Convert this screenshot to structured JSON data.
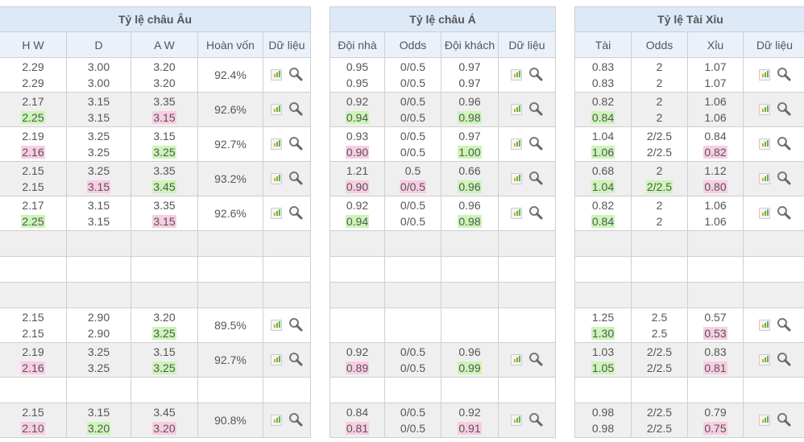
{
  "tables": [
    {
      "title": "Tỷ lệ châu Âu",
      "columns": [
        "H W",
        "D",
        "A W",
        "Hoàn vốn",
        "Dữ liệu"
      ],
      "rows": [
        {
          "cells": [
            [
              [
                "2.29",
                ""
              ],
              [
                "2.29",
                ""
              ]
            ],
            [
              [
                "3.00",
                ""
              ],
              [
                "3.00",
                ""
              ]
            ],
            [
              [
                "3.20",
                ""
              ],
              [
                "3.20",
                ""
              ]
            ]
          ],
          "payout": "92.4%"
        },
        {
          "cells": [
            [
              [
                "2.17",
                ""
              ],
              [
                "2.25",
                "up"
              ]
            ],
            [
              [
                "3.15",
                ""
              ],
              [
                "3.15",
                ""
              ]
            ],
            [
              [
                "3.35",
                ""
              ],
              [
                "3.15",
                "down"
              ]
            ]
          ],
          "payout": "92.6%"
        },
        {
          "cells": [
            [
              [
                "2.19",
                ""
              ],
              [
                "2.16",
                "down"
              ]
            ],
            [
              [
                "3.25",
                ""
              ],
              [
                "3.25",
                ""
              ]
            ],
            [
              [
                "3.15",
                ""
              ],
              [
                "3.25",
                "up"
              ]
            ]
          ],
          "payout": "92.7%"
        },
        {
          "cells": [
            [
              [
                "2.15",
                ""
              ],
              [
                "2.15",
                ""
              ]
            ],
            [
              [
                "3.25",
                ""
              ],
              [
                "3.15",
                "down"
              ]
            ],
            [
              [
                "3.35",
                ""
              ],
              [
                "3.45",
                "up"
              ]
            ]
          ],
          "payout": "93.2%"
        },
        {
          "cells": [
            [
              [
                "2.17",
                ""
              ],
              [
                "2.25",
                "up"
              ]
            ],
            [
              [
                "3.15",
                ""
              ],
              [
                "3.15",
                ""
              ]
            ],
            [
              [
                "3.35",
                ""
              ],
              [
                "3.15",
                "down"
              ]
            ]
          ],
          "payout": "92.6%"
        },
        null,
        null,
        null,
        {
          "cells": [
            [
              [
                "2.15",
                ""
              ],
              [
                "2.15",
                ""
              ]
            ],
            [
              [
                "2.90",
                ""
              ],
              [
                "2.90",
                ""
              ]
            ],
            [
              [
                "3.20",
                ""
              ],
              [
                "3.25",
                "up"
              ]
            ]
          ],
          "payout": "89.5%"
        },
        {
          "cells": [
            [
              [
                "2.19",
                ""
              ],
              [
                "2.16",
                "down"
              ]
            ],
            [
              [
                "3.25",
                ""
              ],
              [
                "3.25",
                ""
              ]
            ],
            [
              [
                "3.15",
                ""
              ],
              [
                "3.25",
                "up"
              ]
            ]
          ],
          "payout": "92.7%"
        },
        null,
        {
          "cells": [
            [
              [
                "2.15",
                ""
              ],
              [
                "2.10",
                "down"
              ]
            ],
            [
              [
                "3.15",
                ""
              ],
              [
                "3.20",
                "up"
              ]
            ],
            [
              [
                "3.45",
                ""
              ],
              [
                "3.20",
                "down"
              ]
            ]
          ],
          "payout": "90.8%"
        }
      ]
    },
    {
      "title": "Tỷ lệ châu Á",
      "columns": [
        "Đội nhà",
        "Odds",
        "Đội khách",
        "Dữ liệu"
      ],
      "rows": [
        {
          "cells": [
            [
              [
                "0.95",
                ""
              ],
              [
                "0.95",
                ""
              ]
            ],
            [
              [
                "0/0.5",
                ""
              ],
              [
                "0/0.5",
                ""
              ]
            ],
            [
              [
                "0.97",
                ""
              ],
              [
                "0.97",
                ""
              ]
            ]
          ]
        },
        {
          "cells": [
            [
              [
                "0.92",
                ""
              ],
              [
                "0.94",
                "up"
              ]
            ],
            [
              [
                "0/0.5",
                ""
              ],
              [
                "0/0.5",
                ""
              ]
            ],
            [
              [
                "0.96",
                ""
              ],
              [
                "0.98",
                "up"
              ]
            ]
          ]
        },
        {
          "cells": [
            [
              [
                "0.93",
                ""
              ],
              [
                "0.90",
                "down"
              ]
            ],
            [
              [
                "0/0.5",
                ""
              ],
              [
                "0/0.5",
                ""
              ]
            ],
            [
              [
                "0.97",
                ""
              ],
              [
                "1.00",
                "up"
              ]
            ]
          ]
        },
        {
          "cells": [
            [
              [
                "1.21",
                ""
              ],
              [
                "0.90",
                "down"
              ]
            ],
            [
              [
                "0.5",
                ""
              ],
              [
                "0/0.5",
                "down"
              ]
            ],
            [
              [
                "0.66",
                ""
              ],
              [
                "0.96",
                "up"
              ]
            ]
          ]
        },
        {
          "cells": [
            [
              [
                "0.92",
                ""
              ],
              [
                "0.94",
                "up"
              ]
            ],
            [
              [
                "0/0.5",
                ""
              ],
              [
                "0/0.5",
                ""
              ]
            ],
            [
              [
                "0.96",
                ""
              ],
              [
                "0.98",
                "up"
              ]
            ]
          ]
        },
        null,
        null,
        null,
        {
          "cells": null
        },
        {
          "cells": [
            [
              [
                "0.92",
                ""
              ],
              [
                "0.89",
                "down"
              ]
            ],
            [
              [
                "0/0.5",
                ""
              ],
              [
                "0/0.5",
                ""
              ]
            ],
            [
              [
                "0.96",
                ""
              ],
              [
                "0.99",
                "up"
              ]
            ]
          ]
        },
        null,
        {
          "cells": [
            [
              [
                "0.84",
                ""
              ],
              [
                "0.81",
                "down"
              ]
            ],
            [
              [
                "0/0.5",
                ""
              ],
              [
                "0/0.5",
                ""
              ]
            ],
            [
              [
                "0.92",
                ""
              ],
              [
                "0.91",
                "down"
              ]
            ]
          ]
        }
      ]
    },
    {
      "title": "Tỷ lệ Tài Xỉu",
      "columns": [
        "Tài",
        "Odds",
        "Xỉu",
        "Dữ liệu"
      ],
      "rows": [
        {
          "cells": [
            [
              [
                "0.83",
                ""
              ],
              [
                "0.83",
                ""
              ]
            ],
            [
              [
                "2",
                ""
              ],
              [
                "2",
                ""
              ]
            ],
            [
              [
                "1.07",
                ""
              ],
              [
                "1.07",
                ""
              ]
            ]
          ]
        },
        {
          "cells": [
            [
              [
                "0.82",
                ""
              ],
              [
                "0.84",
                "up"
              ]
            ],
            [
              [
                "2",
                ""
              ],
              [
                "2",
                ""
              ]
            ],
            [
              [
                "1.06",
                ""
              ],
              [
                "1.06",
                ""
              ]
            ]
          ]
        },
        {
          "cells": [
            [
              [
                "1.04",
                ""
              ],
              [
                "1.06",
                "up"
              ]
            ],
            [
              [
                "2/2.5",
                ""
              ],
              [
                "2/2.5",
                ""
              ]
            ],
            [
              [
                "0.84",
                ""
              ],
              [
                "0.82",
                "down"
              ]
            ]
          ]
        },
        {
          "cells": [
            [
              [
                "0.68",
                ""
              ],
              [
                "1.04",
                "up"
              ]
            ],
            [
              [
                "2",
                ""
              ],
              [
                "2/2.5",
                "up"
              ]
            ],
            [
              [
                "1.12",
                ""
              ],
              [
                "0.80",
                "down"
              ]
            ]
          ]
        },
        {
          "cells": [
            [
              [
                "0.82",
                ""
              ],
              [
                "0.84",
                "up"
              ]
            ],
            [
              [
                "2",
                ""
              ],
              [
                "2",
                ""
              ]
            ],
            [
              [
                "1.06",
                ""
              ],
              [
                "1.06",
                ""
              ]
            ]
          ]
        },
        null,
        null,
        null,
        {
          "cells": [
            [
              [
                "1.25",
                ""
              ],
              [
                "1.30",
                "up"
              ]
            ],
            [
              [
                "2.5",
                ""
              ],
              [
                "2.5",
                ""
              ]
            ],
            [
              [
                "0.57",
                ""
              ],
              [
                "0.53",
                "down"
              ]
            ]
          ]
        },
        {
          "cells": [
            [
              [
                "1.03",
                ""
              ],
              [
                "1.05",
                "up"
              ]
            ],
            [
              [
                "2/2.5",
                ""
              ],
              [
                "2/2.5",
                ""
              ]
            ],
            [
              [
                "0.83",
                ""
              ],
              [
                "0.81",
                "down"
              ]
            ]
          ]
        },
        null,
        {
          "cells": [
            [
              [
                "0.98",
                ""
              ],
              [
                "0.98",
                ""
              ]
            ],
            [
              [
                "2/2.5",
                ""
              ],
              [
                "2/2.5",
                ""
              ]
            ],
            [
              [
                "0.79",
                ""
              ],
              [
                "0.75",
                "down"
              ]
            ]
          ]
        }
      ]
    }
  ],
  "colors": {
    "header": "#dde9f7",
    "up": "#ccf5b8",
    "down": "#f9cde3",
    "alt_row": "#efefef"
  },
  "icons": [
    "bar-chart-icon",
    "magnifier-icon"
  ]
}
